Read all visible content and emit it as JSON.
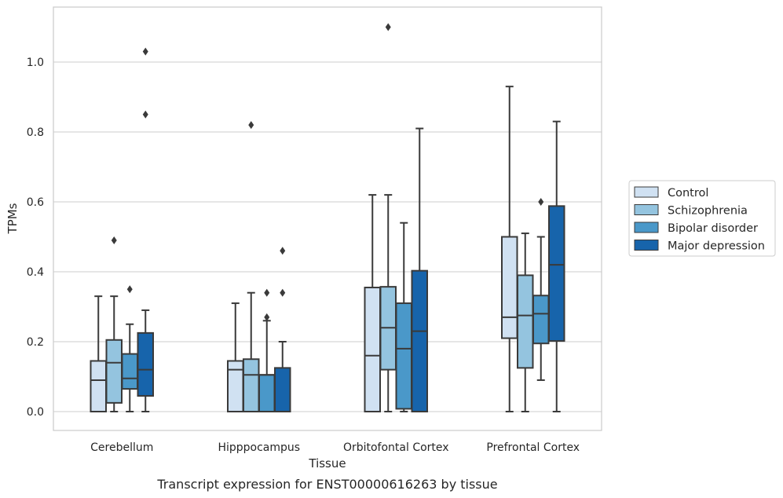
{
  "chart_data": {
    "type": "boxplot",
    "title": "",
    "caption": "Transcript expression for ENST00000616263 by tissue",
    "xlabel": "Tissue",
    "ylabel": "TPMs",
    "ylim": [
      -0.055,
      1.16
    ],
    "yticks": [
      0.0,
      0.2,
      0.4,
      0.6,
      0.8,
      1.0
    ],
    "ytick_labels": [
      "0.0",
      "0.2",
      "0.4",
      "0.6",
      "0.8",
      "1.0"
    ],
    "grid": "horizontal",
    "legend_position": "right",
    "categories": [
      "Cerebellum",
      "Hipppocampus",
      "Orbitofontal Cortex",
      "Prefrontal Cortex"
    ],
    "series": [
      {
        "name": "Control",
        "color": "#d0e1f2",
        "boxes": [
          {
            "whislo": 0.0,
            "q1": 0.0,
            "med": 0.09,
            "q3": 0.145,
            "whishi": 0.33,
            "fliers": []
          },
          {
            "whislo": 0.0,
            "q1": 0.0,
            "med": 0.12,
            "q3": 0.145,
            "whishi": 0.31,
            "fliers": []
          },
          {
            "whislo": 0.0,
            "q1": 0.0,
            "med": 0.16,
            "q3": 0.355,
            "whishi": 0.62,
            "fliers": []
          },
          {
            "whislo": 0.0,
            "q1": 0.21,
            "med": 0.27,
            "q3": 0.5,
            "whishi": 0.93,
            "fliers": []
          }
        ]
      },
      {
        "name": "Schizophrenia",
        "color": "#94c4df",
        "boxes": [
          {
            "whislo": 0.0,
            "q1": 0.025,
            "med": 0.14,
            "q3": 0.205,
            "whishi": 0.33,
            "fliers": [
              0.49
            ]
          },
          {
            "whislo": 0.0,
            "q1": 0.0,
            "med": 0.105,
            "q3": 0.15,
            "whishi": 0.34,
            "fliers": [
              0.82
            ]
          },
          {
            "whislo": 0.0,
            "q1": 0.12,
            "med": 0.24,
            "q3": 0.357,
            "whishi": 0.62,
            "fliers": [
              1.1
            ]
          },
          {
            "whislo": 0.0,
            "q1": 0.125,
            "med": 0.275,
            "q3": 0.39,
            "whishi": 0.51,
            "fliers": []
          }
        ]
      },
      {
        "name": "Bipolar disorder",
        "color": "#4a98c9",
        "boxes": [
          {
            "whislo": 0.0,
            "q1": 0.065,
            "med": 0.095,
            "q3": 0.165,
            "whishi": 0.25,
            "fliers": [
              0.35
            ]
          },
          {
            "whislo": 0.0,
            "q1": 0.0,
            "med": 0.105,
            "q3": 0.105,
            "whishi": 0.26,
            "fliers": [
              0.27,
              0.34
            ]
          },
          {
            "whislo": 0.0,
            "q1": 0.008,
            "med": 0.18,
            "q3": 0.31,
            "whishi": 0.54,
            "fliers": []
          },
          {
            "whislo": 0.09,
            "q1": 0.195,
            "med": 0.28,
            "q3": 0.332,
            "whishi": 0.5,
            "fliers": [
              0.6
            ]
          }
        ]
      },
      {
        "name": "Major depression",
        "color": "#1764ab",
        "boxes": [
          {
            "whislo": 0.0,
            "q1": 0.045,
            "med": 0.12,
            "q3": 0.225,
            "whishi": 0.29,
            "fliers": [
              0.85,
              1.03
            ]
          },
          {
            "whislo": 0.0,
            "q1": 0.0,
            "med": 0.0,
            "q3": 0.125,
            "whishi": 0.2,
            "fliers": [
              0.34,
              0.46
            ]
          },
          {
            "whislo": 0.0,
            "q1": 0.0,
            "med": 0.23,
            "q3": 0.403,
            "whishi": 0.81,
            "fliers": []
          },
          {
            "whislo": 0.0,
            "q1": 0.202,
            "med": 0.42,
            "q3": 0.588,
            "whishi": 0.83,
            "fliers": []
          }
        ]
      }
    ]
  }
}
